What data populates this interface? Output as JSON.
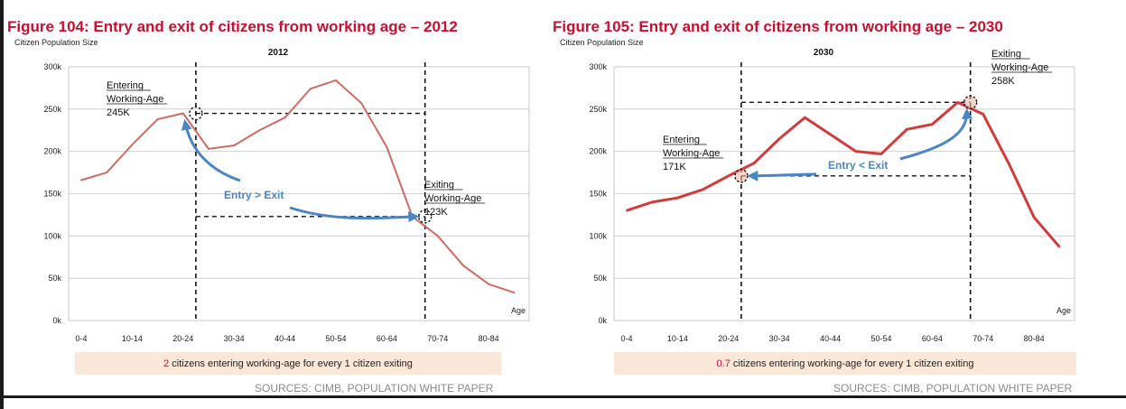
{
  "colors": {
    "title_red": "#c8102e",
    "line_2012": "#d06a62",
    "line_2030": "#d33b3b",
    "arrow_blue": "#4a86c5",
    "note_bg": "#fbe7d8",
    "source_gray": "#8a8a8a"
  },
  "chart_data": [
    {
      "type": "line",
      "figure_title": "Figure 104: Entry and exit of citizens from working age – 2012",
      "title": "2012",
      "ylabel": "Citizen Population Size",
      "xlabel": "Age",
      "ylim": [
        0,
        300000
      ],
      "yticks": [
        0,
        50000,
        100000,
        150000,
        200000,
        250000,
        300000
      ],
      "ytick_labels": [
        "0k",
        "50k",
        "100k",
        "150k",
        "200k",
        "250k",
        "300k"
      ],
      "xtick_labels": [
        "0-4",
        "10-14",
        "20-24",
        "30-34",
        "40-44",
        "50-54",
        "60-64",
        "70-74",
        "80-84"
      ],
      "x": [
        0,
        1,
        2,
        3,
        4,
        5,
        6,
        7,
        8,
        9,
        10,
        11,
        12,
        13,
        14,
        15,
        16,
        17
      ],
      "values": [
        166000,
        175000,
        208000,
        238000,
        245000,
        203000,
        207000,
        225000,
        240000,
        274000,
        284000,
        257000,
        205000,
        123000,
        100000,
        65000,
        43000,
        33000
      ],
      "grid": true,
      "series_name": "Citizen Population Size",
      "entry": {
        "x": 4.5,
        "value": 245000,
        "label": [
          "Entering",
          "Working-Age",
          "245K"
        ]
      },
      "exit": {
        "x": 13.5,
        "value": 123000,
        "label": [
          "Exiting",
          "Working-Age",
          "123K"
        ]
      },
      "arrow_label": "Entry > Exit",
      "note_prefix": "2",
      "note_suffix": " citizens entering working-age for every 1 citizen exiting",
      "source": "SOURCES: CIMB, POPULATION WHITE PAPER"
    },
    {
      "type": "line",
      "figure_title": "Figure 105: Entry and exit of citizens from working age – 2030",
      "title": "2030",
      "ylabel": "Citizen Population Size",
      "xlabel": "Age",
      "ylim": [
        0,
        300000
      ],
      "yticks": [
        0,
        50000,
        100000,
        150000,
        200000,
        250000,
        300000
      ],
      "ytick_labels": [
        "0k",
        "50k",
        "100k",
        "150k",
        "200k",
        "250k",
        "300k"
      ],
      "xtick_labels": [
        "0-4",
        "10-14",
        "20-24",
        "30-34",
        "40-44",
        "50-54",
        "60-64",
        "70-74",
        "80-84"
      ],
      "x": [
        0,
        1,
        2,
        3,
        4,
        5,
        6,
        7,
        8,
        9,
        10,
        11,
        12,
        13,
        14,
        15,
        16,
        17
      ],
      "values": [
        130000,
        140000,
        145000,
        155000,
        171000,
        186000,
        215000,
        240000,
        220000,
        200000,
        197000,
        226000,
        232000,
        258000,
        244000,
        186000,
        122000,
        87000
      ],
      "grid": true,
      "series_name": "Citizen Population Size",
      "entry": {
        "x": 4.5,
        "value": 171000,
        "label": [
          "Entering",
          "Working-Age",
          "171K"
        ]
      },
      "exit": {
        "x": 13.5,
        "value": 258000,
        "label": [
          "Exiting",
          "Working-Age",
          "258K"
        ]
      },
      "arrow_label": "Entry < Exit",
      "note_prefix": "0.7",
      "note_suffix": " citizens entering working-age for every 1 citizen exiting",
      "source": "SOURCES: CIMB, POPULATION WHITE PAPER"
    }
  ]
}
